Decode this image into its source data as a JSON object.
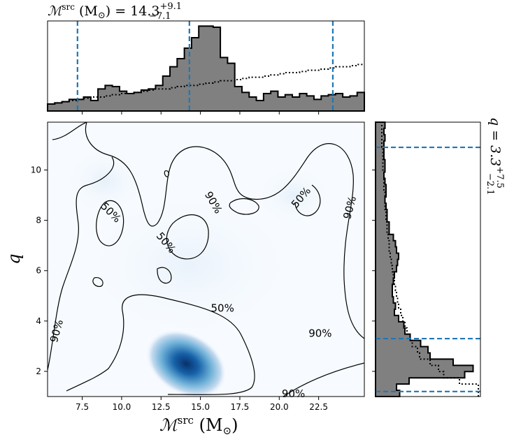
{
  "title_top": {
    "symbol": "ℳ",
    "sup": "src",
    "unit": " (M",
    "sun": "⊙",
    "rest": ") = 14.3",
    "plus": "+9.1",
    "minus": "−7.1"
  },
  "title_right": {
    "text": "q = 3.3",
    "plus": "+7.5",
    "minus": "−2.1"
  },
  "x_axis_label": {
    "symbol": "ℳ",
    "sup": "src",
    "rest": " (M",
    "sun": "⊙",
    "close": ")"
  },
  "y_axis_label": "q",
  "colors": {
    "hist_fill": "#808080",
    "hist_edge": "#000000",
    "quantile_line": "#1f77b4",
    "density_peak": "#08306b",
    "density_low": "#f7fbff"
  },
  "chart_data": [
    {
      "type": "heatmap",
      "name": "joint_posterior",
      "xlim": [
        5.3,
        25.4
      ],
      "ylim": [
        1.0,
        11.9
      ],
      "xticks": [
        7.5,
        10.0,
        12.5,
        15.0,
        17.5,
        20.0,
        22.5
      ],
      "xtick_labels": [
        "7.5",
        "10.0",
        "12.5",
        "15.0",
        "17.5",
        "20.0",
        "22.5"
      ],
      "yticks": [
        2,
        4,
        6,
        8,
        10
      ],
      "ytick_labels": [
        "2",
        "4",
        "6",
        "8",
        "10"
      ],
      "peak": {
        "x": 14.1,
        "y": 2.3
      },
      "contour_labels": [
        {
          "text": "50%",
          "x": 9.3,
          "y": 8.3,
          "rotation": 45
        },
        {
          "text": "50%",
          "x": 12.8,
          "y": 7.1,
          "rotation": 50
        },
        {
          "text": "50%",
          "x": 21.4,
          "y": 8.9,
          "rotation": -50
        },
        {
          "text": "50%",
          "x": 16.4,
          "y": 4.5,
          "rotation": 0
        },
        {
          "text": "90%",
          "x": 15.8,
          "y": 8.7,
          "rotation": 60
        },
        {
          "text": "90%",
          "x": 24.5,
          "y": 8.5,
          "rotation": -75
        },
        {
          "text": "90%",
          "x": 5.9,
          "y": 3.6,
          "rotation": -75
        },
        {
          "text": "90%",
          "x": 22.6,
          "y": 3.5,
          "rotation": 0
        },
        {
          "text": "90%",
          "x": 20.9,
          "y": 1.1,
          "rotation": 0
        }
      ]
    },
    {
      "type": "bar",
      "name": "chirp_mass_marginal",
      "bin_edges": [
        5.3,
        25.4
      ],
      "posterior": [
        0.06,
        0.07,
        0.08,
        0.1,
        0.1,
        0.12,
        0.09,
        0.19,
        0.22,
        0.21,
        0.17,
        0.15,
        0.16,
        0.18,
        0.19,
        0.22,
        0.3,
        0.38,
        0.45,
        0.54,
        0.63,
        0.73,
        0.73,
        0.72,
        0.46,
        0.41,
        0.21,
        0.16,
        0.12,
        0.09,
        0.15,
        0.17,
        0.12,
        0.14,
        0.12,
        0.15,
        0.13,
        0.1,
        0.13,
        0.14,
        0.15,
        0.12,
        0.13,
        0.16
      ],
      "prior": [
        0.06,
        0.07,
        0.08,
        0.09,
        0.1,
        0.11,
        0.12,
        0.12,
        0.13,
        0.14,
        0.15,
        0.15,
        0.16,
        0.17,
        0.18,
        0.19,
        0.19,
        0.2,
        0.21,
        0.22,
        0.22,
        0.23,
        0.24,
        0.25,
        0.26,
        0.26,
        0.27,
        0.28,
        0.29,
        0.29,
        0.3,
        0.31,
        0.32,
        0.33,
        0.33,
        0.34,
        0.35,
        0.35,
        0.36,
        0.37,
        0.38,
        0.38,
        0.39,
        0.4
      ],
      "quantiles": [
        7.2,
        14.3,
        23.4
      ],
      "ylim": [
        0,
        0.75
      ]
    },
    {
      "type": "bar",
      "name": "q_marginal",
      "orientation": "horizontal",
      "bin_edges": [
        1.0,
        11.9
      ],
      "posterior": [
        0.23,
        0.2,
        0.32,
        0.85,
        0.93,
        0.74,
        0.52,
        0.5,
        0.43,
        0.33,
        0.28,
        0.27,
        0.22,
        0.18,
        0.19,
        0.17,
        0.16,
        0.16,
        0.17,
        0.18,
        0.2,
        0.21,
        0.22,
        0.2,
        0.19,
        0.17,
        0.13,
        0.13,
        0.11,
        0.11,
        0.1,
        0.09,
        0.1,
        0.1,
        0.09,
        0.08,
        0.09,
        0.09,
        0.08,
        0.08,
        0.08,
        0.09,
        0.08,
        0.09
      ],
      "prior": [
        0.98,
        0.98,
        0.8,
        0.65,
        0.6,
        0.52,
        0.42,
        0.4,
        0.35,
        0.33,
        0.3,
        0.28,
        0.26,
        0.24,
        0.22,
        0.21,
        0.2,
        0.19,
        0.18,
        0.17,
        0.16,
        0.15,
        0.14,
        0.13,
        0.13,
        0.12,
        0.11,
        0.11,
        0.1,
        0.1,
        0.09,
        0.09,
        0.09,
        0.08,
        0.08,
        0.08,
        0.07,
        0.07,
        0.07,
        0.07,
        0.06,
        0.06,
        0.06,
        0.06
      ],
      "quantiles": [
        1.2,
        3.3,
        10.9
      ],
      "xlim": [
        0,
        1.0
      ]
    }
  ]
}
